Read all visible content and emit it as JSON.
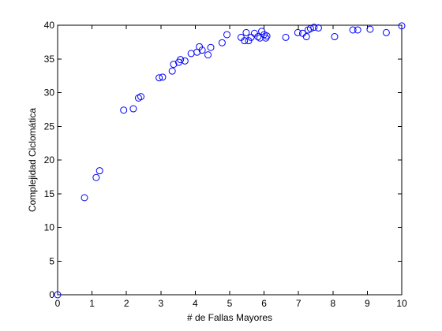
{
  "chart_data": {
    "type": "scatter",
    "title": "",
    "xlabel": "# de Fallas Mayores",
    "ylabel": "Complejidad Ciclomática",
    "xlim": [
      0,
      10
    ],
    "ylim": [
      0,
      40
    ],
    "xticks": [
      "0",
      "1",
      "2",
      "3",
      "4",
      "5",
      "6",
      "7",
      "8",
      "9",
      "10"
    ],
    "yticks": [
      "0",
      "5",
      "10",
      "15",
      "20",
      "25",
      "30",
      "35",
      "40"
    ],
    "grid": false,
    "box": true,
    "marker": "circle",
    "marker_color": "#0000ff",
    "series": [
      {
        "x": [
          0,
          0.78,
          1.12,
          1.22,
          1.92,
          2.2,
          2.35,
          2.42,
          2.95,
          3.05,
          3.33,
          3.37,
          3.52,
          3.57,
          3.7,
          3.88,
          4.05,
          4.12,
          4.2,
          4.37,
          4.45,
          4.78,
          4.92,
          5.33,
          5.43,
          5.48,
          5.55,
          5.62,
          5.72,
          5.82,
          5.88,
          5.93,
          6.0,
          6.05,
          6.08,
          6.63,
          6.98,
          7.12,
          7.23,
          7.28,
          7.35,
          7.45,
          7.58,
          8.05,
          8.58,
          8.72,
          9.08,
          9.55,
          10.0
        ],
        "y": [
          0,
          14.4,
          17.4,
          18.4,
          27.4,
          27.6,
          29.2,
          29.4,
          32.2,
          32.3,
          33.2,
          34.2,
          34.5,
          34.9,
          34.7,
          35.8,
          36.0,
          36.8,
          36.3,
          35.6,
          36.7,
          37.4,
          38.6,
          38.2,
          37.7,
          38.9,
          37.7,
          38.2,
          38.8,
          38.3,
          38.1,
          39.1,
          38.6,
          38.1,
          38.4,
          38.2,
          38.9,
          38.8,
          38.3,
          39.3,
          39.5,
          39.7,
          39.6,
          38.3,
          39.3,
          39.3,
          39.4,
          38.9,
          39.9
        ]
      }
    ]
  }
}
